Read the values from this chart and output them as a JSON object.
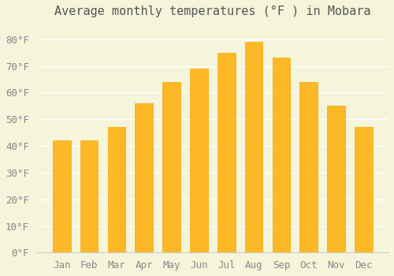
{
  "title": "Average monthly temperatures (°F ) in Mobara",
  "months": [
    "Jan",
    "Feb",
    "Mar",
    "Apr",
    "May",
    "Jun",
    "Jul",
    "Aug",
    "Sep",
    "Oct",
    "Nov",
    "Dec"
  ],
  "values": [
    42,
    42,
    47,
    56,
    64,
    69,
    75,
    79,
    73,
    64,
    55,
    47
  ],
  "bar_color": "#FDB827",
  "bar_edge_color": "#F5A800",
  "background_color": "#F5F5DC",
  "ytick_labels": [
    "0°F",
    "10°F",
    "20°F",
    "30°F",
    "40°F",
    "50°F",
    "60°F",
    "70°F",
    "80°F"
  ],
  "ytick_values": [
    0,
    10,
    20,
    30,
    40,
    50,
    60,
    70,
    80
  ],
  "ylim": [
    0,
    85
  ],
  "title_fontsize": 11,
  "tick_fontsize": 9,
  "grid_color": "#ffffff",
  "axis_color": "#cccccc"
}
